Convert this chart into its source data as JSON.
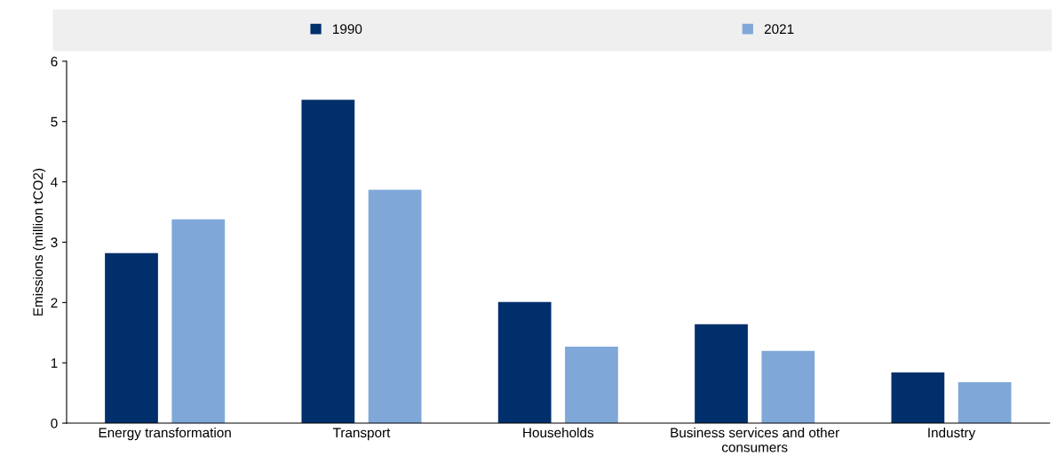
{
  "chart_data": {
    "type": "bar",
    "categories": [
      "Energy transformation",
      "Transport",
      "Households",
      "Business services and other consumers",
      "Industry"
    ],
    "series": [
      {
        "name": "1990",
        "color": "#002f6c",
        "values": [
          2.82,
          5.36,
          2.01,
          1.64,
          0.84
        ]
      },
      {
        "name": "2021",
        "color": "#7fa8d9",
        "values": [
          3.38,
          3.87,
          1.27,
          1.2,
          0.68
        ]
      }
    ],
    "ylabel": "Emissions (million tCO2)",
    "ylim": [
      0,
      6
    ],
    "yticks": [
      0,
      1,
      2,
      3,
      4,
      5,
      6
    ],
    "grid": false,
    "legend": "top"
  }
}
